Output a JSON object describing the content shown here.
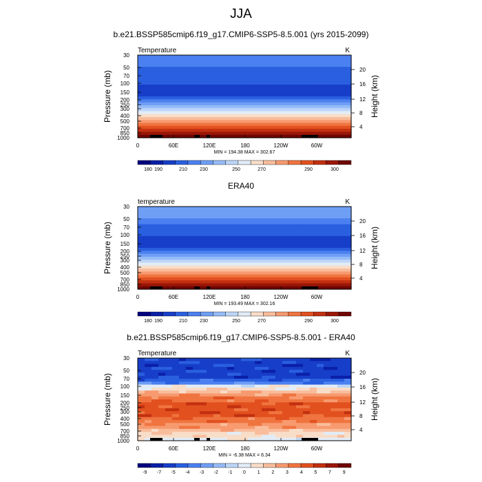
{
  "figure": {
    "title": "JJA"
  },
  "colormap": [
    "#00007f",
    "#0a1fa8",
    "#173ec8",
    "#2a5fe0",
    "#4b80f0",
    "#6f9ef5",
    "#96bbf7",
    "#bdd6f8",
    "#e2ecf7",
    "#f8ddc8",
    "#f9bd9c",
    "#f79a6f",
    "#f0743f",
    "#e2501f",
    "#c23010",
    "#9b1707",
    "#6f0502"
  ],
  "chart_data": [
    {
      "type": "heatmap",
      "title": "b.e21.BSSP585cmip6.f19_g17.CMIP6-SSP5-8.5.001 (yrs 2015-2099)",
      "left_label": "Temperature",
      "right_label": "K",
      "xlabel": "",
      "ylabel": "Pressure (mb)",
      "y2label": "Height (km)",
      "x_ticks": [
        "0",
        "60E",
        "120E",
        "180",
        "120W",
        "60W"
      ],
      "y_ticks": [
        "30",
        "50",
        "70",
        "100",
        "150",
        "200",
        "250",
        "300",
        "400",
        "500",
        "700",
        "850",
        "1000"
      ],
      "y2_ticks": [
        "20",
        "16",
        "12",
        "8",
        "4"
      ],
      "stats": "MIN = 194.38  MAX = 302.67",
      "profile": [
        4,
        4,
        4,
        4,
        3,
        3,
        3,
        3,
        3,
        3,
        2,
        2,
        2,
        2,
        3,
        4,
        5,
        6,
        7,
        8,
        9,
        10,
        11,
        12,
        13,
        14,
        15,
        16
      ],
      "noise": 0,
      "colorbar_labels": [
        "180",
        "190",
        "210",
        "230",
        "250",
        "270",
        "290",
        "300"
      ]
    },
    {
      "type": "heatmap",
      "title": "ERA40",
      "left_label": "temperature",
      "right_label": "K",
      "xlabel": "",
      "ylabel": "Pressure (mb)",
      "y2label": "Height (km)",
      "x_ticks": [
        "0",
        "60E",
        "120E",
        "180",
        "120W",
        "60W"
      ],
      "y_ticks": [
        "30",
        "50",
        "70",
        "100",
        "150",
        "200",
        "250",
        "300",
        "400",
        "500",
        "700",
        "850",
        "1000"
      ],
      "y2_ticks": [
        "20",
        "16",
        "12",
        "8",
        "4"
      ],
      "stats": "MIN = 193.49  MAX = 302.16",
      "profile": [
        5,
        5,
        5,
        5,
        4,
        4,
        3,
        3,
        3,
        3,
        2,
        2,
        2,
        2,
        3,
        4,
        5,
        6,
        7,
        8,
        9,
        10,
        11,
        12,
        13,
        14,
        15,
        16
      ],
      "noise": 0,
      "colorbar_labels": [
        "180",
        "190",
        "210",
        "230",
        "250",
        "270",
        "290",
        "300"
      ]
    },
    {
      "type": "heatmap",
      "title": "b.e21.BSSP585cmip6.f19_g17.CMIP6-SSP5-8.5.001 - ERA40",
      "left_label": "Temperature",
      "right_label": "K",
      "xlabel": "",
      "ylabel": "Pressure (mb)",
      "y2label": "Height (km)",
      "x_ticks": [
        "0",
        "60E",
        "120E",
        "180",
        "120W",
        "60W"
      ],
      "y_ticks": [
        "30",
        "50",
        "70",
        "100",
        "150",
        "200",
        "250",
        "300",
        "400",
        "500",
        "700",
        "850",
        "1000"
      ],
      "y2_ticks": [
        "20",
        "16",
        "12",
        "8",
        "4"
      ],
      "stats": "MIN = -6.38  MAX =  6.34",
      "profile": [
        2,
        2,
        2,
        2,
        2,
        2,
        2,
        3,
        4,
        8,
        9,
        10,
        11,
        12,
        12,
        13,
        13,
        13,
        13,
        13,
        12,
        12,
        11,
        11,
        10,
        9,
        9,
        8
      ],
      "noise": 1,
      "colorbar_labels": [
        "-9",
        "-7",
        "-5",
        "-4",
        "-3",
        "-2",
        "-1",
        "0",
        "1",
        "2",
        "3",
        "4",
        "5",
        "7",
        "9"
      ]
    }
  ]
}
